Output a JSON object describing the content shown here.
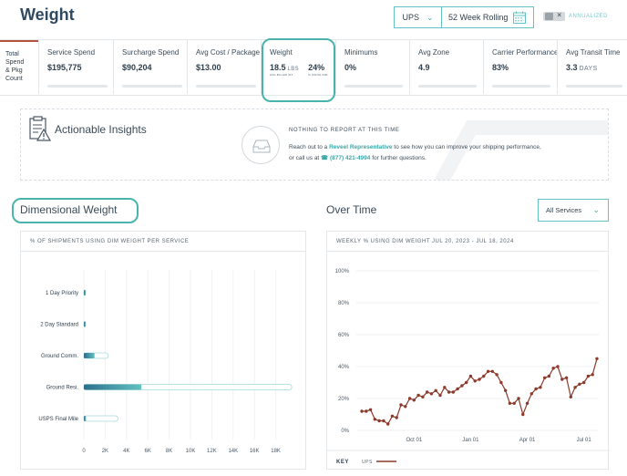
{
  "header": {
    "title": "Weight"
  },
  "filters": {
    "carrier": "UPS",
    "date_range": "52 Week Rolling",
    "annualized_label": "ANNUALIZED"
  },
  "kpi_side_label": [
    "Total",
    "Spend",
    "& Pkg",
    "Count"
  ],
  "kpis": [
    {
      "label": "Service Spend",
      "value": "$195,775"
    },
    {
      "label": "Surcharge Spend",
      "value": "$90,204"
    },
    {
      "label": "Avg Cost / Package",
      "value": "$13.00"
    },
    {
      "label": "Weight",
      "value1": "18.5",
      "unit1": "LBS",
      "sub1": "AVG BILLED WT",
      "value2": "24%",
      "sub2": "% USING DIM"
    },
    {
      "label": "Minimums",
      "value": "0%"
    },
    {
      "label": "Avg Zone",
      "value": "4.9"
    },
    {
      "label": "Carrier Performance",
      "value": "83%"
    },
    {
      "label": "Avg Transit Time",
      "value": "3.3",
      "unit": "DAYS"
    }
  ],
  "insights": {
    "title": "Actionable Insights",
    "status": "NOTHING TO REPORT AT THIS TIME",
    "msg_before": "Reach out to a ",
    "msg_link": "Reveel Representative",
    "msg_mid": " to see how you can improve your shipping performance, or call us at ",
    "phone": "(877) 421-4994",
    "msg_after": " for further questions."
  },
  "dim_section": {
    "title": "Dimensional Weight",
    "chart_title": "% OF SHIPMENTS USING DIM WEIGHT PER SERVICE"
  },
  "over_time_section": {
    "title": "Over Time",
    "service_select": "All Services",
    "chart_title": "WEEKLY % USING DIM WEIGHT JUL 20, 2023 - JUL 18, 2024",
    "key_label": "KEY",
    "key_series": "UPS"
  },
  "colors": {
    "accent": "#4bb3ad",
    "line": "#8b3a2b",
    "bar_fill_dark": "#2e6f8e",
    "bar_fill_light": "#5fc2c0"
  },
  "chart_data": [
    {
      "type": "bar",
      "orientation": "horizontal",
      "title": "% OF SHIPMENTS USING DIM WEIGHT PER SERVICE",
      "categories": [
        "1 Day Priority",
        "2 Day Standard",
        "Ground Comm.",
        "Ground Resi.",
        "USPS Final Mile"
      ],
      "series": [
        {
          "values": [
            100,
            150,
            2300,
            19500,
            3200
          ]
        },
        {
          "values": [
            100,
            80,
            1000,
            5400,
            200
          ]
        }
      ],
      "x_ticks": [
        "0",
        "2K",
        "4K",
        "6K",
        "8K",
        "10K",
        "12K",
        "14K",
        "16K",
        "18K"
      ],
      "xlim": [
        0,
        20000
      ]
    },
    {
      "type": "line",
      "title": "WEEKLY % USING DIM WEIGHT JUL 20, 2023 - JUL 18, 2024",
      "x_ticks": [
        "Oct 01",
        "Jan 01",
        "Apr 01",
        "Jul 01"
      ],
      "y_ticks": [
        "0%",
        "20%",
        "40%",
        "60%",
        "80%",
        "100%"
      ],
      "ylim": [
        0,
        100
      ],
      "series": [
        {
          "name": "UPS",
          "values": [
            12,
            12,
            13,
            7,
            6,
            6,
            4,
            9,
            8,
            16,
            15,
            20,
            19,
            22,
            21,
            24,
            23,
            25,
            22,
            27,
            24,
            24,
            26,
            28,
            30,
            34,
            31,
            32,
            34,
            37,
            37,
            35,
            30,
            25,
            17,
            17,
            20,
            10,
            17,
            23,
            26,
            27,
            33,
            34,
            39,
            40,
            32,
            33,
            21,
            27,
            29,
            30,
            34,
            35,
            45
          ]
        }
      ]
    }
  ]
}
